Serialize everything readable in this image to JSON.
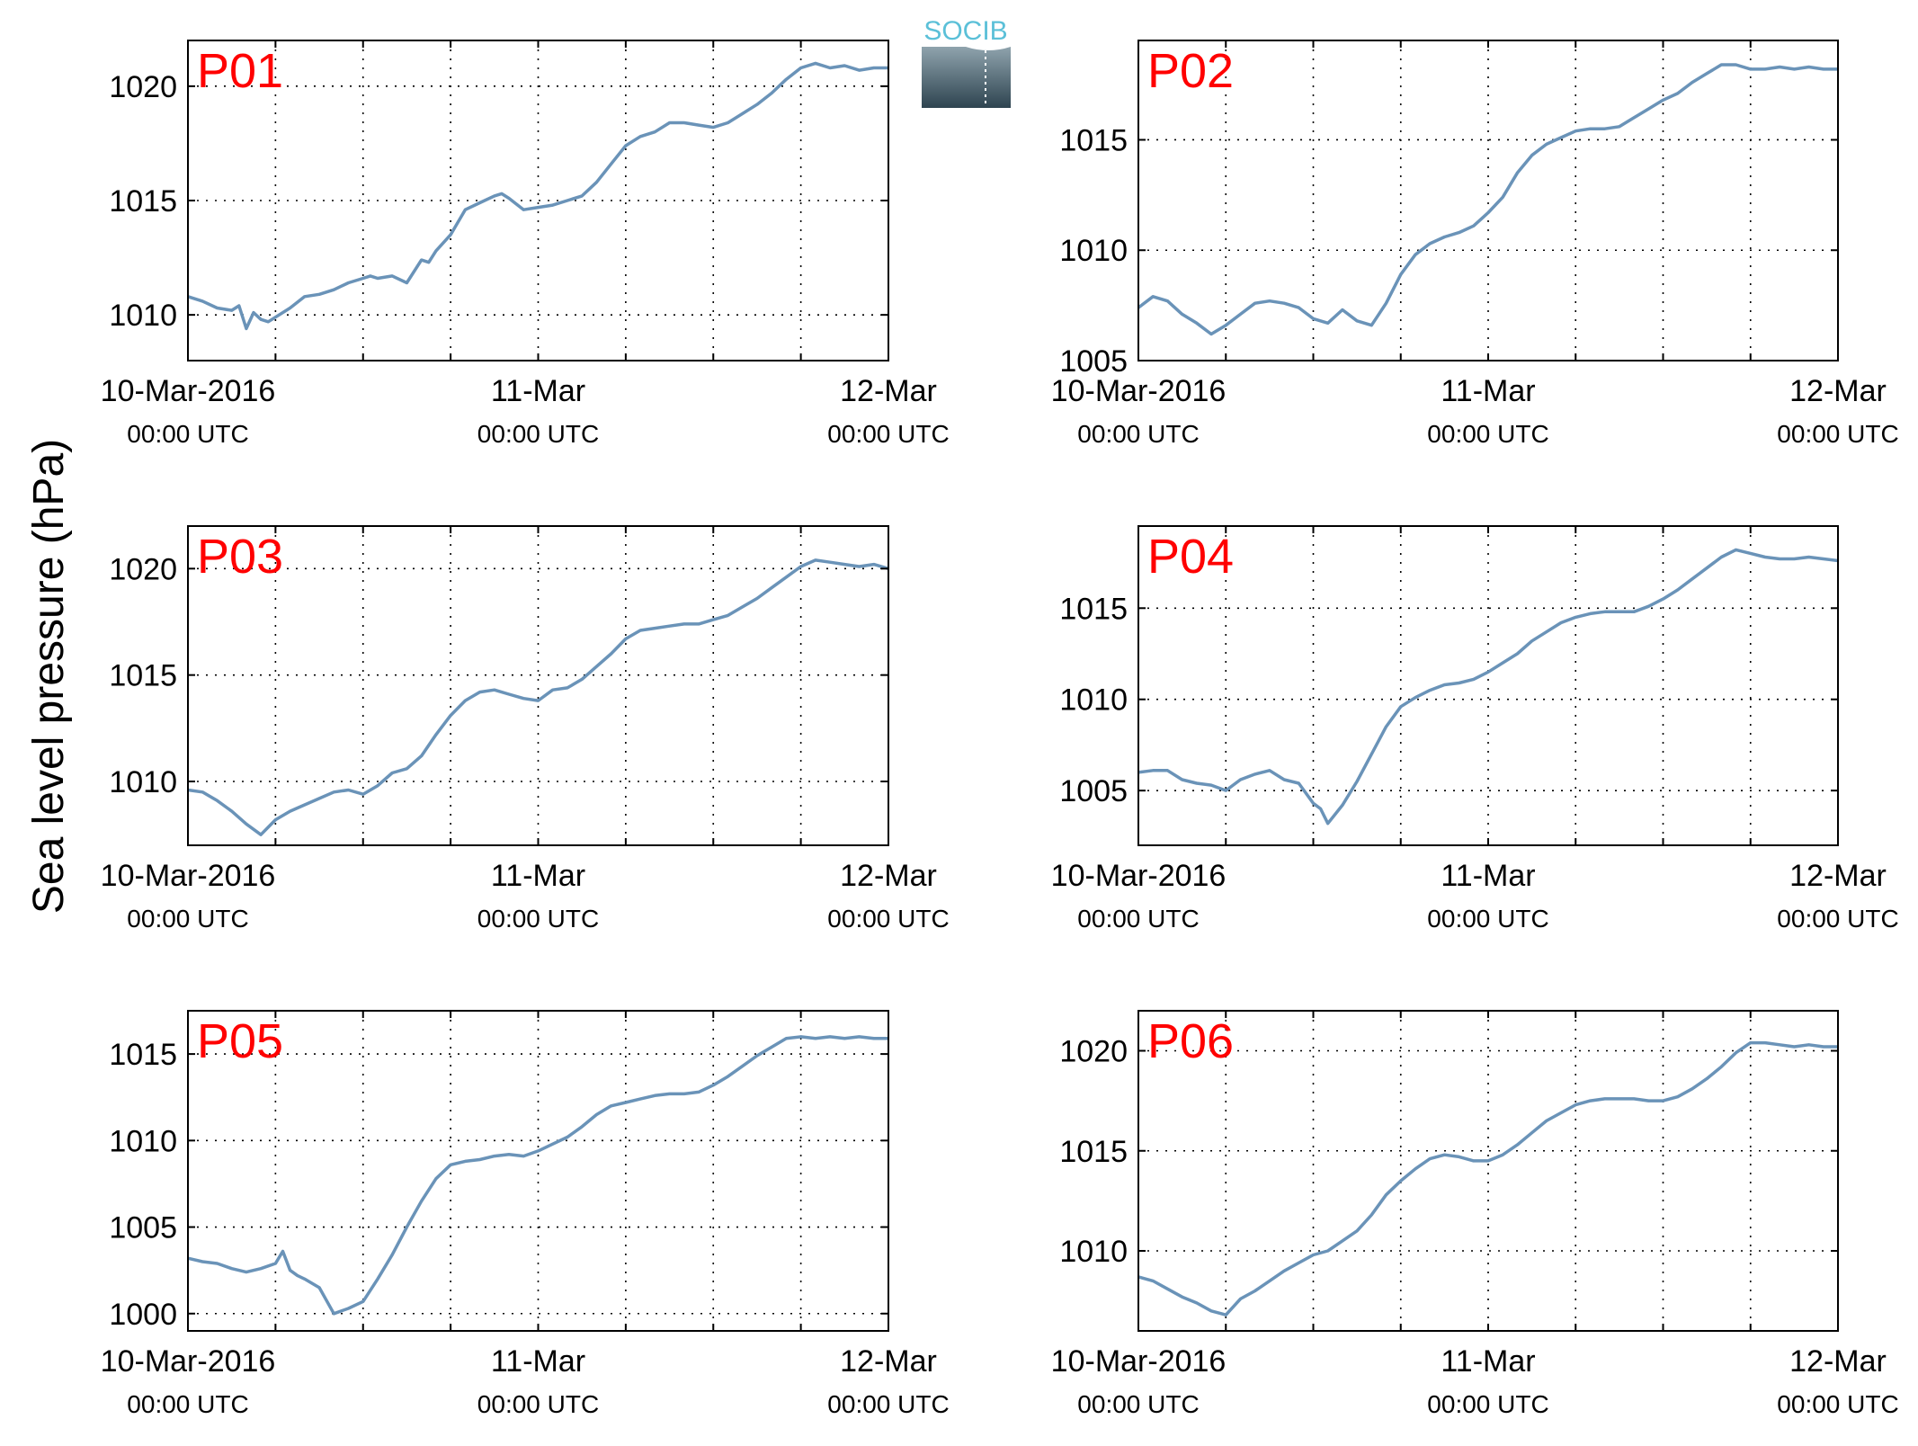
{
  "figure": {
    "ylabel": "Sea level pressure (hPa)",
    "logo_text": "SOCIB",
    "x_time_label": "00:00 UTC",
    "x_tick_dates": [
      "10-Mar-2016",
      "11-Mar",
      "12-Mar"
    ],
    "line_color": "#6a93b8",
    "label_color": "#ff0000",
    "logo_colors": {
      "text": "#5bc0d8",
      "top": "#8fa3ad",
      "bottom": "#2e4450"
    }
  },
  "chart_data": [
    {
      "type": "line",
      "label": "P01",
      "xlim": [
        0,
        48
      ],
      "ylim": [
        1008,
        1022
      ],
      "yticks": [
        1010,
        1015,
        1020
      ],
      "grid": true,
      "series": [
        {
          "x": [
            0,
            1,
            2,
            3,
            3.5,
            4,
            4.5,
            5,
            5.5,
            6,
            7,
            8,
            9,
            10,
            11,
            12,
            12.5,
            13,
            14,
            15,
            16,
            16.5,
            17,
            18,
            19,
            20,
            21,
            21.5,
            22,
            23,
            24,
            25,
            26,
            27,
            28,
            29,
            30,
            31,
            32,
            33,
            34,
            35,
            36,
            37,
            38,
            39,
            40,
            41,
            42,
            43,
            44,
            45,
            46,
            47,
            48
          ],
          "y": [
            1010.8,
            1010.6,
            1010.3,
            1010.2,
            1010.4,
            1009.4,
            1010.1,
            1009.8,
            1009.7,
            1009.9,
            1010.3,
            1010.8,
            1010.9,
            1011.1,
            1011.4,
            1011.6,
            1011.7,
            1011.6,
            1011.7,
            1011.4,
            1012.4,
            1012.3,
            1012.8,
            1013.5,
            1014.6,
            1014.9,
            1015.2,
            1015.3,
            1015.1,
            1014.6,
            1014.7,
            1014.8,
            1015,
            1015.2,
            1015.8,
            1016.6,
            1017.4,
            1017.8,
            1018,
            1018.4,
            1018.4,
            1018.3,
            1018.2,
            1018.4,
            1018.8,
            1019.2,
            1019.7,
            1020.3,
            1020.8,
            1021,
            1020.8,
            1020.9,
            1020.7,
            1020.8,
            1020.8
          ]
        }
      ]
    },
    {
      "type": "line",
      "label": "P02",
      "xlim": [
        0,
        48
      ],
      "ylim": [
        1005,
        1019.5
      ],
      "yticks": [
        1005,
        1010,
        1015
      ],
      "grid": true,
      "series": [
        {
          "x": [
            0,
            1,
            2,
            3,
            4,
            5,
            6,
            7,
            8,
            9,
            10,
            11,
            12,
            13,
            14,
            15,
            16,
            17,
            18,
            19,
            20,
            21,
            22,
            23,
            24,
            25,
            26,
            27,
            28,
            29,
            30,
            31,
            32,
            33,
            34,
            35,
            36,
            37,
            38,
            39,
            40,
            41,
            42,
            43,
            44,
            45,
            46,
            47,
            48
          ],
          "y": [
            1007.4,
            1007.9,
            1007.7,
            1007.1,
            1006.7,
            1006.2,
            1006.6,
            1007.1,
            1007.6,
            1007.7,
            1007.6,
            1007.4,
            1006.9,
            1006.7,
            1007.3,
            1006.8,
            1006.6,
            1007.6,
            1008.9,
            1009.8,
            1010.3,
            1010.6,
            1010.8,
            1011.1,
            1011.7,
            1012.4,
            1013.5,
            1014.3,
            1014.8,
            1015.1,
            1015.4,
            1015.5,
            1015.5,
            1015.6,
            1016,
            1016.4,
            1016.8,
            1017.1,
            1017.6,
            1018,
            1018.4,
            1018.4,
            1018.2,
            1018.2,
            1018.3,
            1018.2,
            1018.3,
            1018.2,
            1018.2
          ]
        }
      ]
    },
    {
      "type": "line",
      "label": "P03",
      "xlim": [
        0,
        48
      ],
      "ylim": [
        1007,
        1022
      ],
      "yticks": [
        1010,
        1015,
        1020
      ],
      "grid": true,
      "series": [
        {
          "x": [
            0,
            1,
            2,
            3,
            4,
            5,
            6,
            7,
            8,
            9,
            10,
            11,
            12,
            13,
            14,
            15,
            16,
            17,
            18,
            19,
            20,
            21,
            22,
            23,
            24,
            25,
            26,
            27,
            28,
            29,
            30,
            31,
            32,
            33,
            34,
            35,
            36,
            37,
            38,
            39,
            40,
            41,
            42,
            43,
            44,
            45,
            46,
            47,
            48
          ],
          "y": [
            1009.6,
            1009.5,
            1009.1,
            1008.6,
            1008,
            1007.5,
            1008.2,
            1008.6,
            1008.9,
            1009.2,
            1009.5,
            1009.6,
            1009.4,
            1009.8,
            1010.4,
            1010.6,
            1011.2,
            1012.2,
            1013.1,
            1013.8,
            1014.2,
            1014.3,
            1014.1,
            1013.9,
            1013.8,
            1014.3,
            1014.4,
            1014.8,
            1015.4,
            1016,
            1016.7,
            1017.1,
            1017.2,
            1017.3,
            1017.4,
            1017.4,
            1017.6,
            1017.8,
            1018.2,
            1018.6,
            1019.1,
            1019.6,
            1020.1,
            1020.4,
            1020.3,
            1020.2,
            1020.1,
            1020.2,
            1020
          ]
        }
      ]
    },
    {
      "type": "line",
      "label": "P04",
      "xlim": [
        0,
        48
      ],
      "ylim": [
        1002,
        1019.5
      ],
      "yticks": [
        1005,
        1010,
        1015
      ],
      "grid": true,
      "series": [
        {
          "x": [
            0,
            1,
            2,
            3,
            4,
            5,
            6,
            7,
            8,
            9,
            10,
            11,
            12,
            12.5,
            13,
            14,
            15,
            16,
            17,
            18,
            19,
            20,
            21,
            22,
            23,
            24,
            25,
            26,
            27,
            28,
            29,
            30,
            31,
            32,
            33,
            34,
            35,
            36,
            37,
            38,
            39,
            40,
            41,
            42,
            43,
            44,
            45,
            46,
            47,
            48
          ],
          "y": [
            1006,
            1006.1,
            1006.1,
            1005.6,
            1005.4,
            1005.3,
            1005,
            1005.6,
            1005.9,
            1006.1,
            1005.6,
            1005.4,
            1004.3,
            1004,
            1003.2,
            1004.2,
            1005.5,
            1007,
            1008.5,
            1009.6,
            1010.1,
            1010.5,
            1010.8,
            1010.9,
            1011.1,
            1011.5,
            1012,
            1012.5,
            1013.2,
            1013.7,
            1014.2,
            1014.5,
            1014.7,
            1014.8,
            1014.8,
            1014.8,
            1015.1,
            1015.5,
            1016,
            1016.6,
            1017.2,
            1017.8,
            1018.2,
            1018,
            1017.8,
            1017.7,
            1017.7,
            1017.8,
            1017.7,
            1017.6
          ]
        }
      ]
    },
    {
      "type": "line",
      "label": "P05",
      "xlim": [
        0,
        48
      ],
      "ylim": [
        999,
        1017.5
      ],
      "yticks": [
        1000,
        1005,
        1010,
        1015
      ],
      "grid": true,
      "series": [
        {
          "x": [
            0,
            1,
            2,
            3,
            4,
            5,
            6,
            6.5,
            7,
            7.5,
            8,
            9,
            10,
            11,
            12,
            13,
            14,
            15,
            16,
            17,
            18,
            19,
            20,
            21,
            22,
            23,
            24,
            25,
            26,
            27,
            28,
            29,
            30,
            31,
            32,
            33,
            34,
            35,
            36,
            37,
            38,
            39,
            40,
            41,
            42,
            43,
            44,
            45,
            46,
            47,
            48
          ],
          "y": [
            1003.2,
            1003,
            1002.9,
            1002.6,
            1002.4,
            1002.6,
            1002.9,
            1003.6,
            1002.5,
            1002.2,
            1002,
            1001.5,
            1000,
            1000.3,
            1000.7,
            1002,
            1003.4,
            1005,
            1006.5,
            1007.8,
            1008.6,
            1008.8,
            1008.9,
            1009.1,
            1009.2,
            1009.1,
            1009.4,
            1009.8,
            1010.2,
            1010.8,
            1011.5,
            1012,
            1012.2,
            1012.4,
            1012.6,
            1012.7,
            1012.7,
            1012.8,
            1013.2,
            1013.7,
            1014.3,
            1014.9,
            1015.4,
            1015.9,
            1016,
            1015.9,
            1016,
            1015.9,
            1016,
            1015.9,
            1015.9
          ]
        }
      ]
    },
    {
      "type": "line",
      "label": "P06",
      "xlim": [
        0,
        48
      ],
      "ylim": [
        1006,
        1022
      ],
      "yticks": [
        1010,
        1015,
        1020
      ],
      "grid": true,
      "series": [
        {
          "x": [
            0,
            1,
            2,
            3,
            4,
            5,
            6,
            7,
            8,
            9,
            10,
            11,
            12,
            13,
            14,
            15,
            16,
            17,
            18,
            19,
            20,
            21,
            22,
            23,
            24,
            25,
            26,
            27,
            28,
            29,
            30,
            31,
            32,
            33,
            34,
            35,
            36,
            37,
            38,
            39,
            40,
            41,
            42,
            43,
            44,
            45,
            46,
            47,
            48
          ],
          "y": [
            1008.7,
            1008.5,
            1008.1,
            1007.7,
            1007.4,
            1007,
            1006.8,
            1007.6,
            1008,
            1008.5,
            1009,
            1009.4,
            1009.8,
            1010,
            1010.5,
            1011,
            1011.8,
            1012.8,
            1013.5,
            1014.1,
            1014.6,
            1014.8,
            1014.7,
            1014.5,
            1014.5,
            1014.8,
            1015.3,
            1015.9,
            1016.5,
            1016.9,
            1017.3,
            1017.5,
            1017.6,
            1017.6,
            1017.6,
            1017.5,
            1017.5,
            1017.7,
            1018.1,
            1018.6,
            1019.2,
            1019.9,
            1020.4,
            1020.4,
            1020.3,
            1020.2,
            1020.3,
            1020.2,
            1020.2
          ]
        }
      ]
    }
  ]
}
